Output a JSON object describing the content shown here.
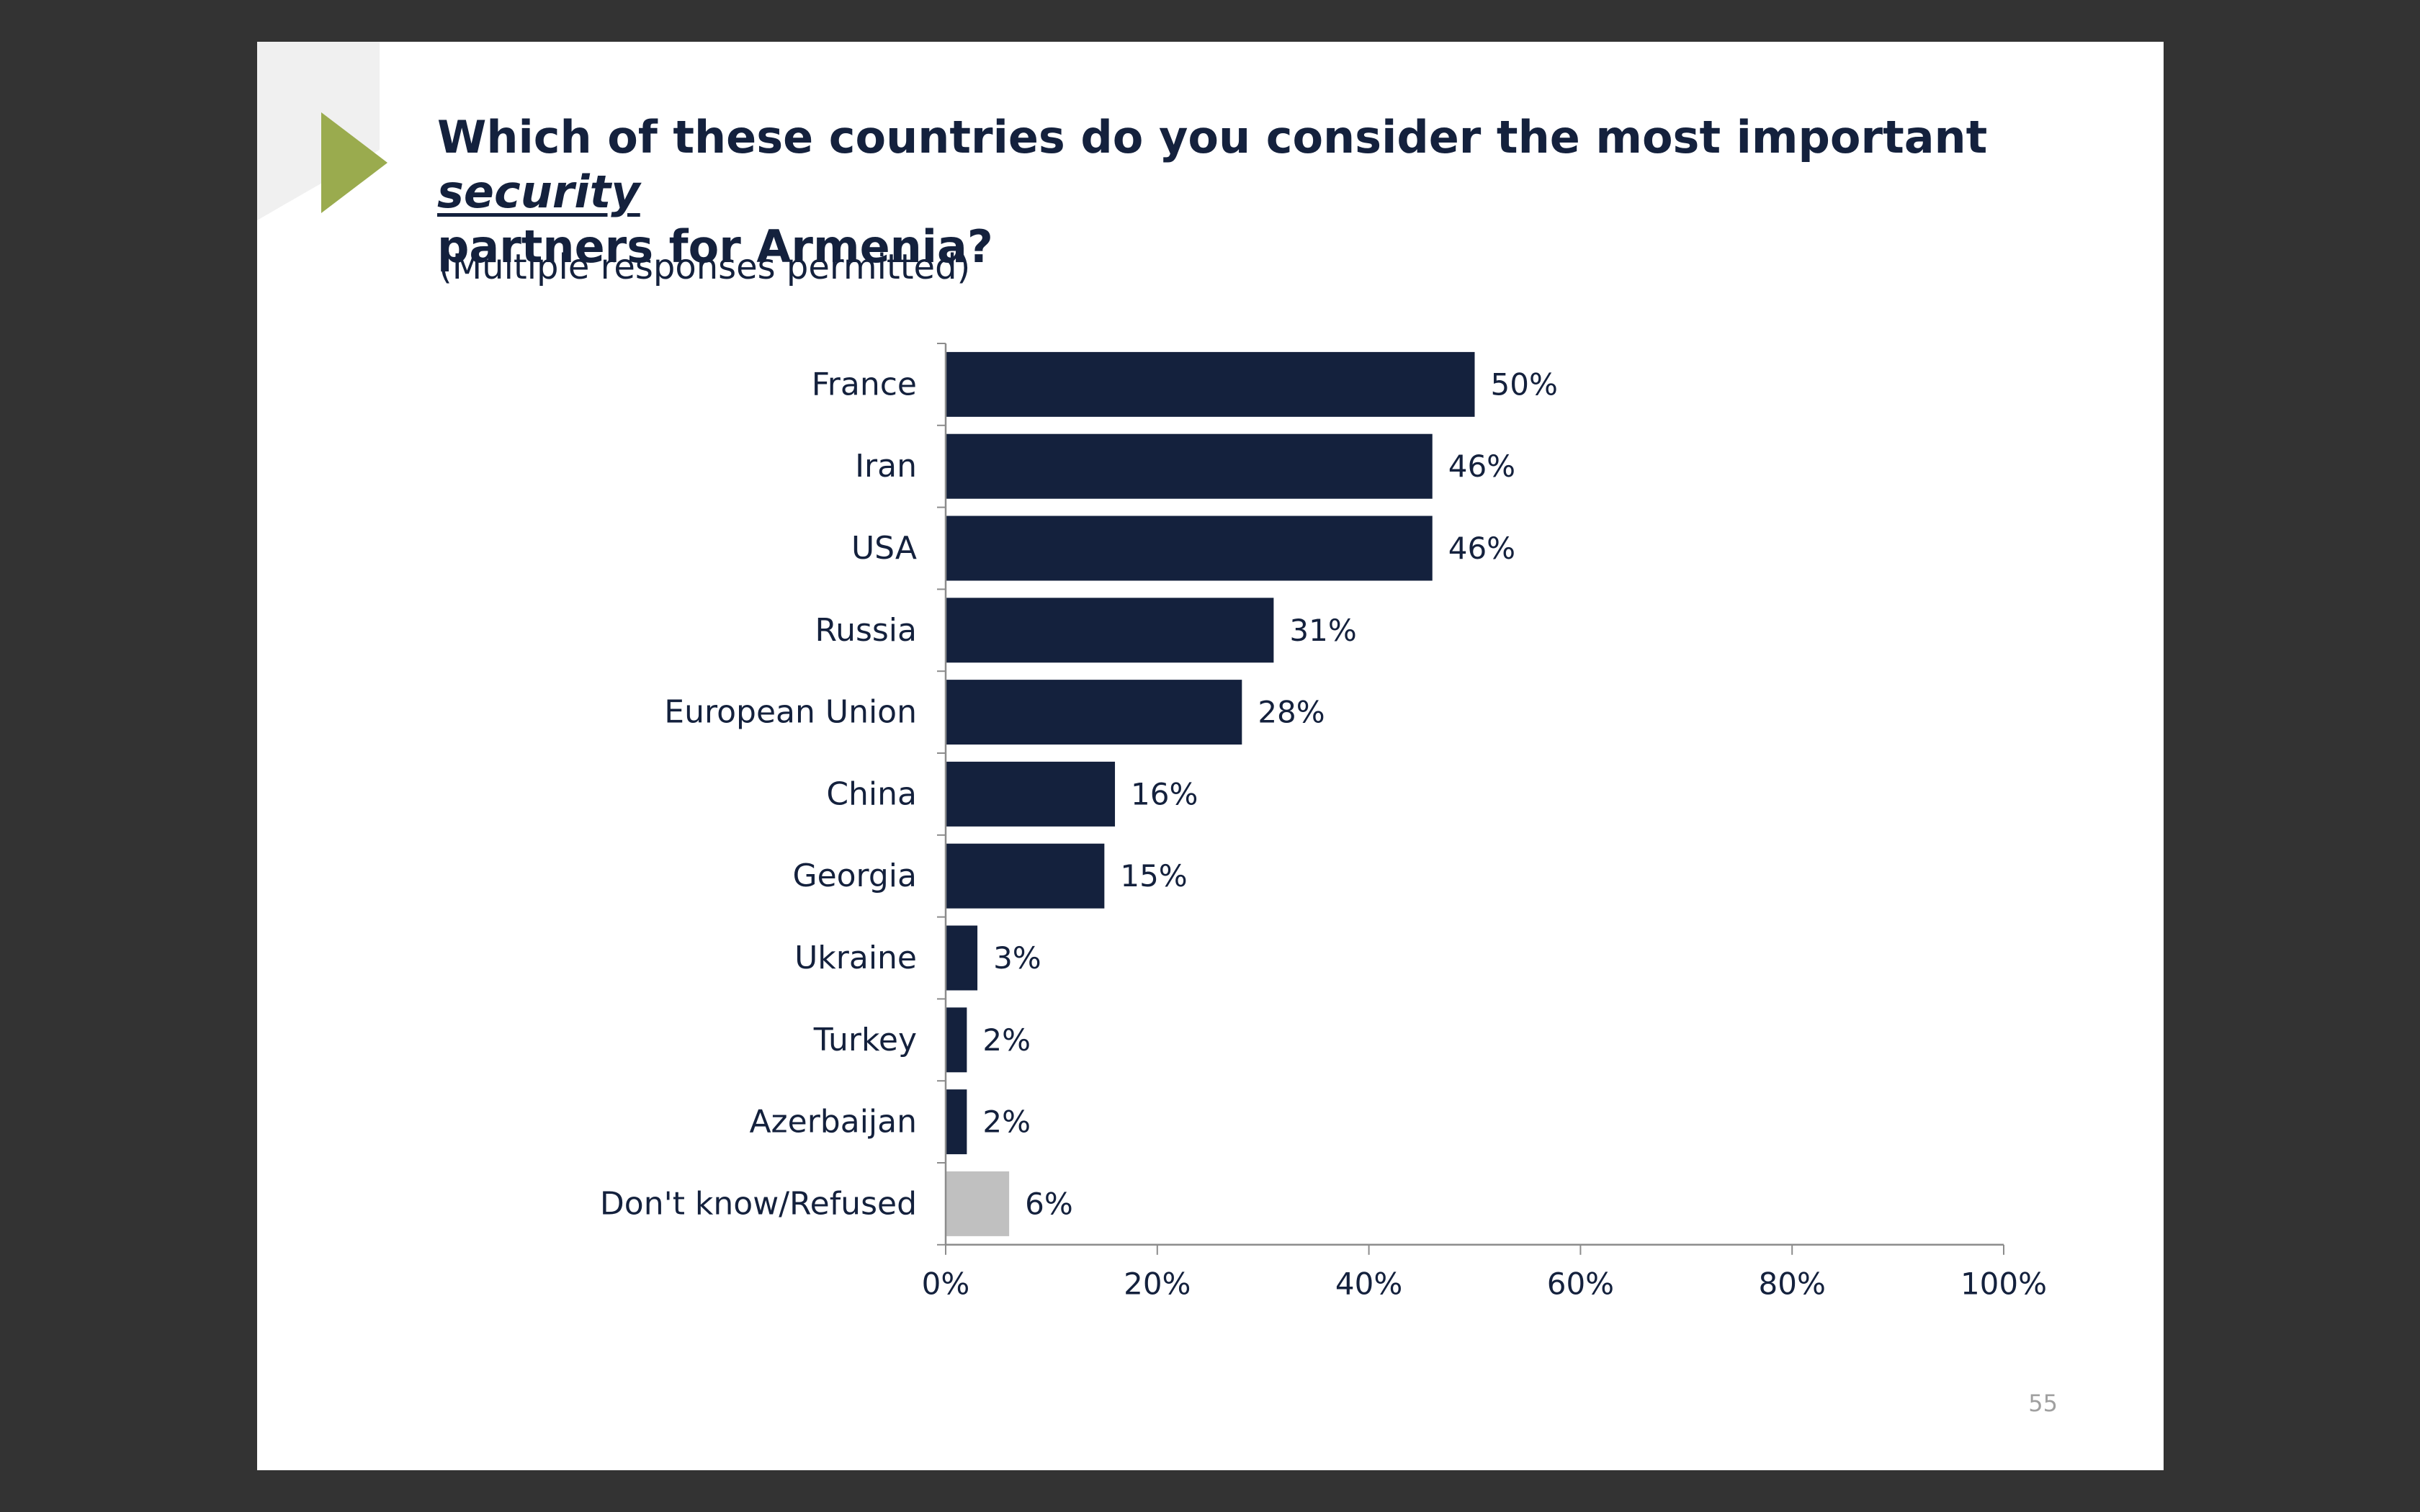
{
  "slide": {
    "title_part1": "Which of these countries do you consider the most important ",
    "title_emphasis": "security",
    "title_part2": "partners for Armenia?",
    "subtitle": "(Multiple responses permitted)",
    "page_number": "55",
    "accent_color": "#9aab4e"
  },
  "chart_data": {
    "type": "bar",
    "orientation": "horizontal",
    "categories": [
      "France",
      "Iran",
      "USA",
      "Russia",
      "European Union",
      "China",
      "Georgia",
      "Ukraine",
      "Turkey",
      "Azerbaijan",
      "Don't know/Refused"
    ],
    "values": [
      50,
      46,
      46,
      31,
      28,
      16,
      15,
      3,
      2,
      2,
      6
    ],
    "data_labels": [
      "50%",
      "46%",
      "46%",
      "31%",
      "28%",
      "16%",
      "15%",
      "3%",
      "2%",
      "2%",
      "6%"
    ],
    "bar_colors": [
      "#14213d",
      "#14213d",
      "#14213d",
      "#14213d",
      "#14213d",
      "#14213d",
      "#14213d",
      "#14213d",
      "#14213d",
      "#14213d",
      "#c0c0c0"
    ],
    "xlim": [
      0,
      100
    ],
    "x_ticks": [
      0,
      20,
      40,
      60,
      80,
      100
    ],
    "x_tick_labels": [
      "0%",
      "20%",
      "40%",
      "60%",
      "80%",
      "100%"
    ],
    "grid": false,
    "legend": "none"
  }
}
